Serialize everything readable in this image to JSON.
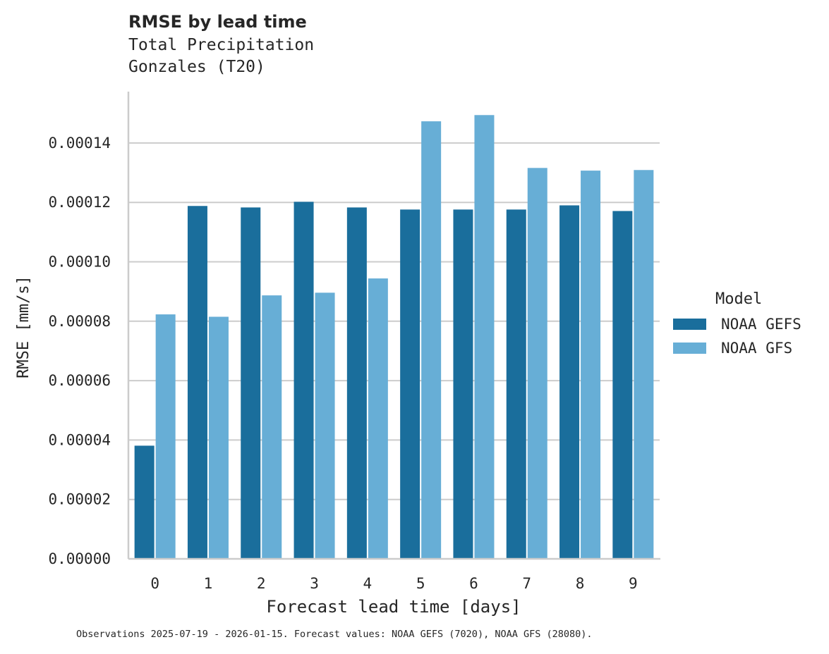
{
  "title": "RMSE by lead time",
  "subtitle_line1": "Total Precipitation",
  "subtitle_line2": "Gonzales (T20)",
  "footnote": "Observations 2025-07-19 - 2026-01-15. Forecast values: NOAA GEFS (7020), NOAA GFS (28080).",
  "legend": {
    "title": "Model",
    "items": [
      {
        "label": "NOAA GEFS",
        "color": "#1a6e9c"
      },
      {
        "label": "NOAA GFS",
        "color": "#67aed6"
      }
    ]
  },
  "chart_data": {
    "type": "bar",
    "title": "RMSE by lead time",
    "subtitle": "Total Precipitation — Gonzales (T20)",
    "xlabel": "Forecast lead time [days]",
    "ylabel": "RMSE [mm/s]",
    "categories": [
      "0",
      "1",
      "2",
      "3",
      "4",
      "5",
      "6",
      "7",
      "8",
      "9"
    ],
    "series": [
      {
        "name": "NOAA GEFS",
        "color": "#1a6e9c",
        "values": [
          3.81e-05,
          0.0001188,
          0.0001183,
          0.0001202,
          0.0001183,
          0.0001176,
          0.0001176,
          0.0001176,
          0.000119,
          0.0001171
        ]
      },
      {
        "name": "NOAA GFS",
        "color": "#67aed6",
        "values": [
          8.23e-05,
          8.15e-05,
          8.87e-05,
          8.96e-05,
          9.44e-05,
          0.0001473,
          0.0001494,
          0.0001316,
          0.0001307,
          0.0001309
        ]
      }
    ],
    "yticks": [
      "0.00000",
      "0.00002",
      "0.00004",
      "0.00006",
      "0.00008",
      "0.00010",
      "0.00012",
      "0.00014"
    ],
    "ylim": [
      0,
      0.000157
    ],
    "grid": "y",
    "legend_position": "right"
  }
}
